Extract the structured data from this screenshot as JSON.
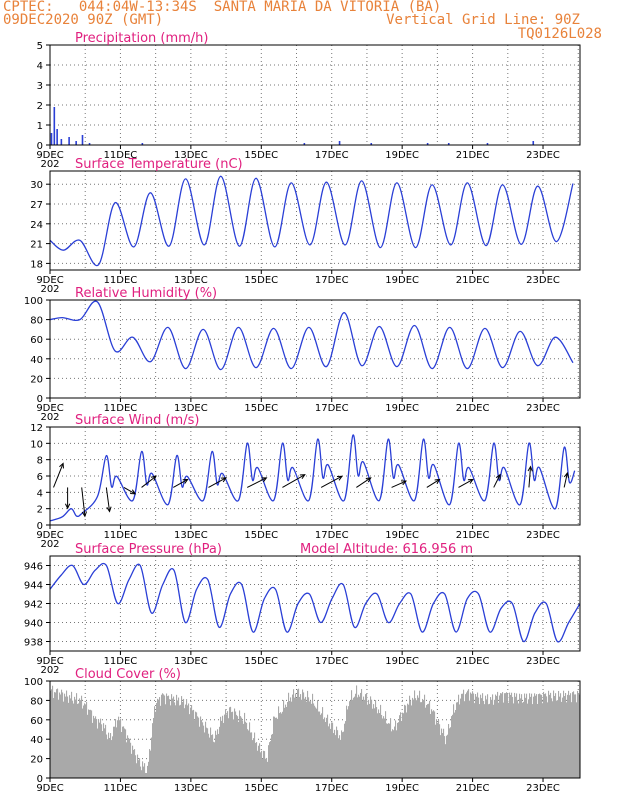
{
  "header": {
    "line1": "CPTEC:   044:04W-13:34S  SANTA MARIA DA VITORIA (BA)",
    "line2_left": "09DEC2020 90Z (GMT)",
    "line2_right": "Vertical Grid Line: 90Z",
    "line3_right": "TQ0126L028"
  },
  "colors": {
    "header": "#e8823a",
    "title": "#e0207f",
    "series": "#2a3fd6",
    "cloud": "#a9a9a9",
    "wind_arrow": "#000000"
  },
  "x_axis": {
    "start": "09DEC",
    "end": "24DEC",
    "tick_labels": [
      "9DEC",
      "11DEC",
      "13DEC",
      "15DEC",
      "17DEC",
      "19DEC",
      "21DEC",
      "23DEC"
    ],
    "tick_positions": [
      0,
      2,
      4,
      6,
      8,
      10,
      12,
      14
    ],
    "range": [
      0,
      15.05
    ],
    "year_label": "202"
  },
  "chart_data": [
    {
      "id": "precip",
      "type": "bar",
      "title": "Precipitation (mm/h)",
      "ylim": [
        0,
        5
      ],
      "yticks": [
        0,
        1,
        2,
        3,
        4,
        5
      ],
      "grid": true,
      "x": [
        0.02,
        0.1,
        0.18,
        0.3,
        0.52,
        0.72,
        0.9,
        1.1,
        2.6,
        7.2,
        8.2,
        9.1,
        10.7,
        11.3,
        12.4,
        13.7
      ],
      "values": [
        0.6,
        1.9,
        0.8,
        0.3,
        0.4,
        0.2,
        0.5,
        0.1,
        0.1,
        0.1,
        0.2,
        0.1,
        0.1,
        0.1,
        0.1,
        0.2
      ]
    },
    {
      "id": "temp",
      "type": "line",
      "title": "Surface Temperature (nC)",
      "ylim": [
        17,
        32
      ],
      "yticks": [
        18,
        21,
        24,
        27,
        30
      ],
      "grid": true,
      "min": [
        20.0,
        17.8,
        20.5,
        20.6,
        20.8,
        20.6,
        20.5,
        20.8,
        20.8,
        20.4,
        20.4,
        20.8,
        20.7,
        20.9,
        21.3,
        21.5
      ],
      "max": [
        21.5,
        27.2,
        28.7,
        30.8,
        31.2,
        30.9,
        30.2,
        30.3,
        30.5,
        30.2,
        29.9,
        30.2,
        29.9,
        29.7,
        30.1,
        29.4
      ]
    },
    {
      "id": "rh",
      "type": "line",
      "title": "Relative Humidity (%)",
      "ylim": [
        0,
        100
      ],
      "yticks": [
        0,
        20,
        40,
        60,
        80,
        100
      ],
      "grid": true,
      "max": [
        82,
        98,
        62,
        72,
        70,
        72,
        71,
        72,
        87,
        73,
        74,
        72,
        71,
        68,
        62,
        62
      ],
      "min": [
        80,
        48,
        37,
        30,
        29,
        31,
        30,
        32,
        33,
        32,
        30,
        30,
        31,
        33,
        36,
        34
      ]
    },
    {
      "id": "wind",
      "type": "line",
      "title": "Surface Wind (m/s)",
      "ylim": [
        0,
        12
      ],
      "yticks": [
        0,
        2,
        4,
        6,
        8,
        10,
        12
      ],
      "grid": true,
      "max": [
        2,
        8.5,
        9,
        8.5,
        9,
        10,
        10,
        10.5,
        11,
        10.5,
        10.5,
        10,
        10,
        10,
        9.5,
        6
      ],
      "min": [
        1,
        3.5,
        3,
        2.5,
        3,
        3,
        3,
        3,
        3,
        3,
        3,
        2.5,
        3,
        2.5,
        2,
        1.5
      ],
      "arrows": [
        {
          "x": 0.1,
          "y": 4.6,
          "u": 0.6,
          "v": 1.5
        },
        {
          "x": 0.5,
          "y": 4.6,
          "u": 0.0,
          "v": -1.3
        },
        {
          "x": 0.9,
          "y": 4.6,
          "u": 0.2,
          "v": -1.8
        },
        {
          "x": 1.6,
          "y": 4.6,
          "u": 0.2,
          "v": -1.5
        },
        {
          "x": 2.1,
          "y": 4.6,
          "u": 0.7,
          "v": -0.4
        },
        {
          "x": 2.6,
          "y": 4.6,
          "u": 0.9,
          "v": 0.7
        },
        {
          "x": 3.5,
          "y": 4.6,
          "u": 0.9,
          "v": 0.5
        },
        {
          "x": 4.5,
          "y": 4.6,
          "u": 1.1,
          "v": 0.6
        },
        {
          "x": 5.6,
          "y": 4.6,
          "u": 1.2,
          "v": 0.6
        },
        {
          "x": 6.6,
          "y": 4.6,
          "u": 1.4,
          "v": 0.8
        },
        {
          "x": 7.7,
          "y": 4.6,
          "u": 1.3,
          "v": 0.7
        },
        {
          "x": 8.7,
          "y": 4.6,
          "u": 0.9,
          "v": 0.6
        },
        {
          "x": 9.7,
          "y": 4.6,
          "u": 0.9,
          "v": 0.4
        },
        {
          "x": 10.7,
          "y": 4.6,
          "u": 0.8,
          "v": 0.5
        },
        {
          "x": 11.6,
          "y": 4.6,
          "u": 0.9,
          "v": 0.5
        },
        {
          "x": 12.6,
          "y": 4.6,
          "u": 0.4,
          "v": 0.8
        },
        {
          "x": 13.6,
          "y": 4.6,
          "u": 0.1,
          "v": 1.3
        },
        {
          "x": 14.6,
          "y": 4.6,
          "u": 0.2,
          "v": 0.9
        }
      ]
    },
    {
      "id": "pres",
      "type": "line",
      "title": "Surface Pressure (hPa)",
      "subtitle": "Model Altitude: 616.956 m",
      "ylim": [
        937,
        947
      ],
      "yticks": [
        938,
        940,
        942,
        944,
        946
      ],
      "grid": true,
      "samples": [
        943.5,
        945,
        946,
        944,
        945.5,
        946,
        942,
        944.5,
        946,
        941,
        944,
        945.5,
        940,
        943.5,
        944.5,
        939.5,
        943,
        944,
        939,
        942.5,
        943.5,
        939,
        942,
        943,
        940,
        942.5,
        944,
        939.5,
        942,
        943,
        940,
        942,
        943,
        939,
        942,
        943,
        939,
        942.5,
        943,
        939,
        941.5,
        942,
        938,
        941,
        942,
        938,
        940,
        942
      ]
    },
    {
      "id": "cloud",
      "type": "bar",
      "title": "Cloud Cover (%)",
      "ylim": [
        0,
        100
      ],
      "yticks": [
        0,
        20,
        40,
        60,
        80,
        100
      ],
      "grid": true,
      "profile": [
        90,
        88,
        85,
        82,
        80,
        72,
        60,
        55,
        40,
        62,
        48,
        30,
        15,
        8,
        75,
        85,
        82,
        80,
        78,
        70,
        60,
        50,
        40,
        62,
        70,
        65,
        60,
        45,
        30,
        20,
        62,
        70,
        82,
        88,
        85,
        80,
        70,
        60,
        50,
        42,
        80,
        88,
        84,
        78,
        70,
        60,
        50,
        65,
        78,
        85,
        80,
        72,
        55,
        40,
        70,
        85,
        88,
        84,
        82,
        80,
        85,
        86,
        84,
        82,
        83,
        84,
        85,
        85,
        84,
        85,
        86,
        85
      ]
    }
  ]
}
